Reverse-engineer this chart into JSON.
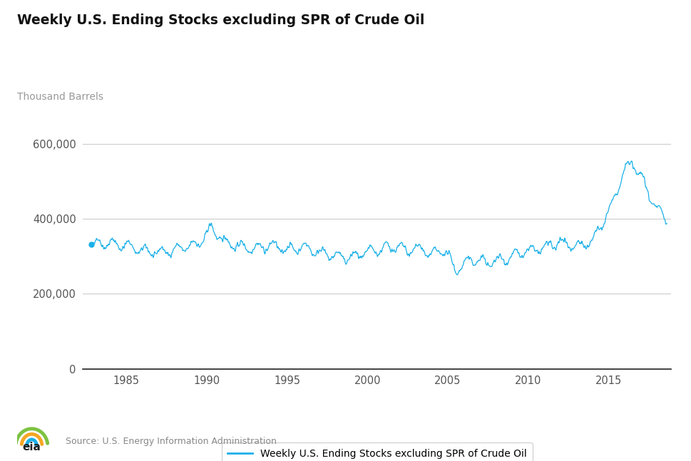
{
  "title": "Weekly U.S. Ending Stocks excluding SPR of Crude Oil",
  "ylabel": "Thousand Barrels",
  "legend_label": "Weekly U.S. Ending Stocks excluding SPR of Crude Oil",
  "source": "Source: U.S. Energy Information Administration",
  "line_color": "#1ab0e8",
  "background_color": "#ffffff",
  "yticks": [
    0,
    200000,
    400000,
    600000
  ],
  "xtick_years": [
    1985,
    1990,
    1995,
    2000,
    2005,
    2010,
    2015
  ],
  "ylim": [
    0,
    640000
  ],
  "xlim_start": 1982.3,
  "xlim_end": 2018.9
}
